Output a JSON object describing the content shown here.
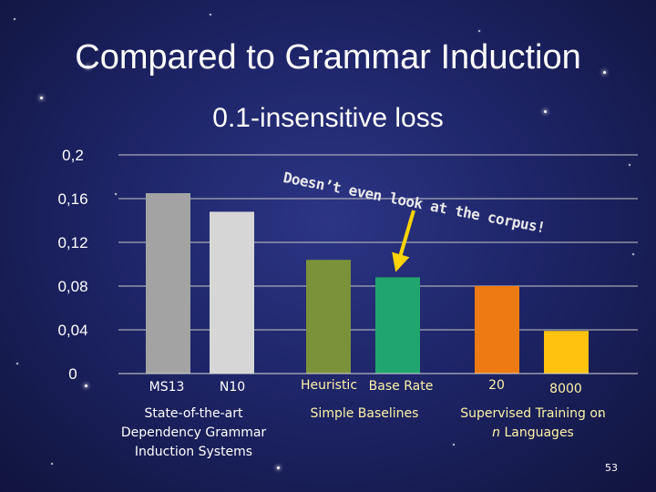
{
  "slide": {
    "title": "Compared to Grammar Induction",
    "page_number": "53"
  },
  "annotation": "Doesn’t even look at the corpus!",
  "groups": [
    {
      "label": "State-of-the-art Dependency Grammar Induction Systems"
    },
    {
      "label": "Simple Baselines"
    },
    {
      "label_prefix": "Supervised Training on ",
      "label_em": "n",
      "label_suffix": " Languages"
    }
  ],
  "chart_data": {
    "type": "bar",
    "title": "0.1-insensitive loss",
    "categories": [
      "MS13",
      "N10",
      "Heuristic",
      "Base Rate",
      "20",
      "8000"
    ],
    "values": [
      0.165,
      0.148,
      0.104,
      0.088,
      0.08,
      0.039
    ],
    "colors": [
      "#a3a3a3",
      "#d6d6d6",
      "#7a923a",
      "#21a56e",
      "#ed7a12",
      "#ffc20e"
    ],
    "label_colors": [
      "#ffffff",
      "#ffffff",
      "#fff3a8",
      "#fff3a8",
      "#fff3a8",
      "#fff3a8"
    ],
    "group_index": [
      0,
      0,
      1,
      1,
      2,
      2
    ],
    "yticks": [
      "0",
      "0,04",
      "0,08",
      "0,12",
      "0,16",
      "0,2"
    ],
    "ylim": [
      0,
      0.2
    ],
    "grid": true,
    "legend": "none"
  }
}
